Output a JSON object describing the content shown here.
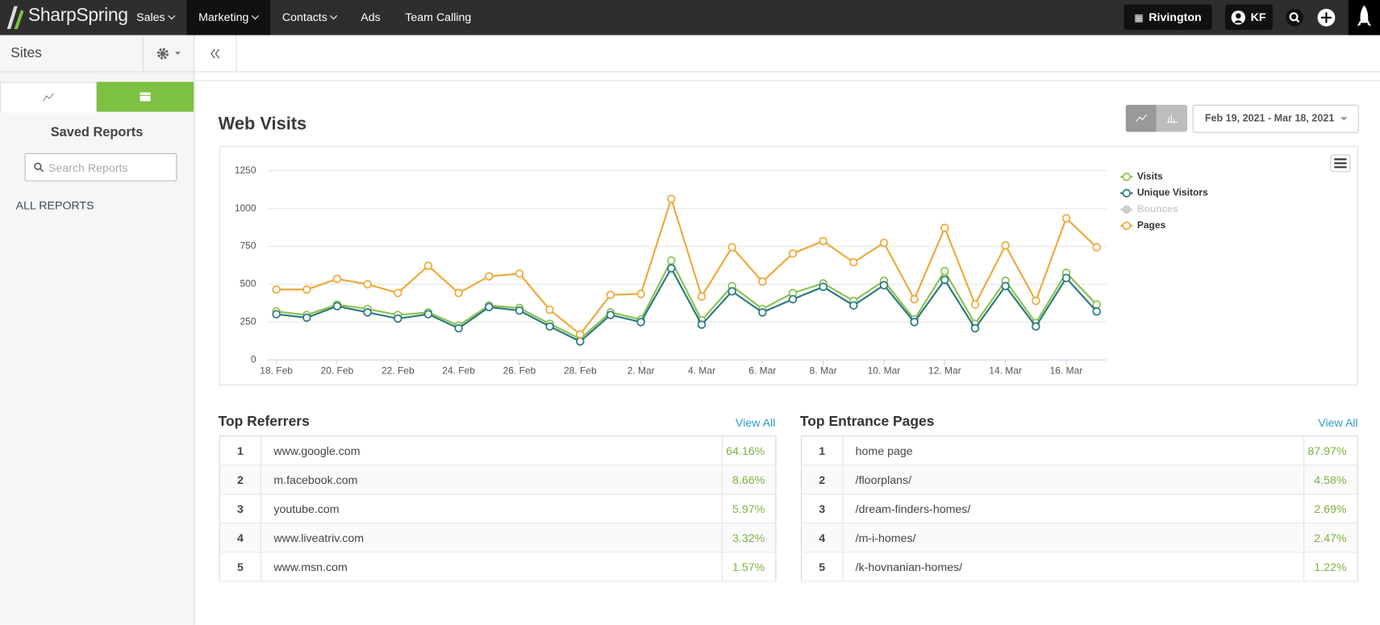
{
  "nav": {
    "brand": "SharpSpring",
    "items": [
      {
        "label": "Sales",
        "dropdown": true
      },
      {
        "label": "Marketing",
        "dropdown": true,
        "active": true
      },
      {
        "label": "Contacts",
        "dropdown": true
      },
      {
        "label": "Ads"
      },
      {
        "label": "Team Calling"
      }
    ],
    "account": "Rivington",
    "user": "KF"
  },
  "sidebar": {
    "title": "Sites",
    "heading": "Saved Reports",
    "search_placeholder": "Search Reports",
    "link": "ALL REPORTS"
  },
  "main": {
    "title": "Web Visits",
    "date_range": "Feb 19, 2021 - Mar 18, 2021"
  },
  "chart_data": {
    "type": "line",
    "categories": [
      "18. Feb",
      null,
      "20. Feb",
      null,
      "22. Feb",
      null,
      "24. Feb",
      null,
      "26. Feb",
      null,
      "28. Feb",
      null,
      "2. Mar",
      null,
      "4. Mar",
      null,
      "6. Mar",
      null,
      "8. Mar",
      null,
      "10. Mar",
      null,
      "12. Mar",
      null,
      "14. Mar",
      null,
      "16. Mar",
      null
    ],
    "series": [
      {
        "name": "Visits",
        "color": "#8cc152",
        "values": [
          320,
          297,
          366,
          337,
          297,
          314,
          227,
          360,
          343,
          238,
          140,
          314,
          267,
          657,
          262,
          488,
          337,
          442,
          506,
          390,
          523,
          267,
          587,
          238,
          523,
          244,
          576,
          366
        ]
      },
      {
        "name": "Unique Visitors",
        "color": "#2a7b80",
        "values": [
          302,
          279,
          355,
          314,
          273,
          302,
          209,
          349,
          326,
          221,
          122,
          297,
          250,
          605,
          233,
          453,
          314,
          401,
          483,
          360,
          494,
          250,
          529,
          209,
          488,
          221,
          541,
          320
        ]
      },
      {
        "name": "Bounces",
        "color": "#cccccc",
        "visible": false
      },
      {
        "name": "Pages",
        "color": "#eea93a",
        "values": [
          465,
          465,
          535,
          500,
          442,
          622,
          442,
          552,
          570,
          331,
          169,
          430,
          436,
          1064,
          419,
          744,
          517,
          703,
          785,
          645,
          773,
          401,
          872,
          366,
          756,
          390,
          936,
          744
        ]
      }
    ],
    "ylim": [
      0,
      1250
    ],
    "yticks": [
      0,
      250,
      500,
      750,
      1000,
      1250
    ],
    "grid": true
  },
  "referrers": {
    "title": "Top Referrers",
    "link": "View All",
    "rows": [
      [
        "1",
        "www.google.com",
        "64.16%"
      ],
      [
        "2",
        "m.facebook.com",
        "8.66%"
      ],
      [
        "3",
        "youtube.com",
        "5.97%"
      ],
      [
        "4",
        "www.liveatriv.com",
        "3.32%"
      ],
      [
        "5",
        "www.msn.com",
        "1.57%"
      ]
    ]
  },
  "entrance_pages": {
    "title": "Top Entrance Pages",
    "link": "View All",
    "rows": [
      [
        "1",
        "home page",
        "87.97%"
      ],
      [
        "2",
        "/floorplans/",
        "4.58%"
      ],
      [
        "3",
        "/dream-finders-homes/",
        "2.69%"
      ],
      [
        "4",
        "/m-i-homes/",
        "2.47%"
      ],
      [
        "5",
        "/k-hovnanian-homes/",
        "1.22%"
      ]
    ]
  }
}
